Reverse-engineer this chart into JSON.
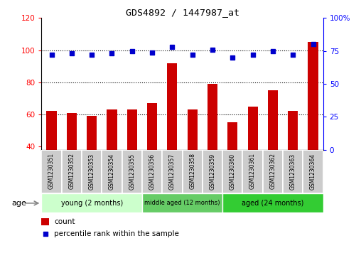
{
  "title": "GDS4892 / 1447987_at",
  "samples": [
    "GSM1230351",
    "GSM1230352",
    "GSM1230353",
    "GSM1230354",
    "GSM1230355",
    "GSM1230356",
    "GSM1230357",
    "GSM1230358",
    "GSM1230359",
    "GSM1230360",
    "GSM1230361",
    "GSM1230362",
    "GSM1230363",
    "GSM1230364"
  ],
  "counts": [
    62,
    61,
    59,
    63,
    63,
    67,
    92,
    63,
    79,
    55,
    65,
    75,
    62,
    105
  ],
  "percentiles": [
    72,
    73,
    72,
    73,
    75,
    74,
    78,
    72,
    76,
    70,
    72,
    75,
    72,
    80
  ],
  "ylim_left": [
    38,
    120
  ],
  "ylim_right": [
    0,
    100
  ],
  "yticks_left": [
    40,
    60,
    80,
    100,
    120
  ],
  "yticks_right": [
    0,
    25,
    50,
    75,
    100
  ],
  "ytick_right_labels": [
    "0",
    "25",
    "50",
    "75",
    "100%"
  ],
  "groups": [
    {
      "label": "young (2 months)",
      "start": 0,
      "end": 5,
      "color": "#CCFFCC"
    },
    {
      "label": "middle aged (12 months)",
      "start": 5,
      "end": 9,
      "color": "#66CC66"
    },
    {
      "label": "aged (24 months)",
      "start": 9,
      "end": 14,
      "color": "#33CC33"
    }
  ],
  "bar_color": "#CC0000",
  "dot_color": "#0000CC",
  "bar_width": 0.5,
  "grid_color": "black",
  "age_label": "age",
  "legend_count_color": "#CC0000",
  "legend_pct_color": "#0000CC",
  "legend_count": "count",
  "legend_pct": "percentile rank within the sample",
  "label_box_color": "#CCCCCC",
  "arrow_color": "#888888"
}
